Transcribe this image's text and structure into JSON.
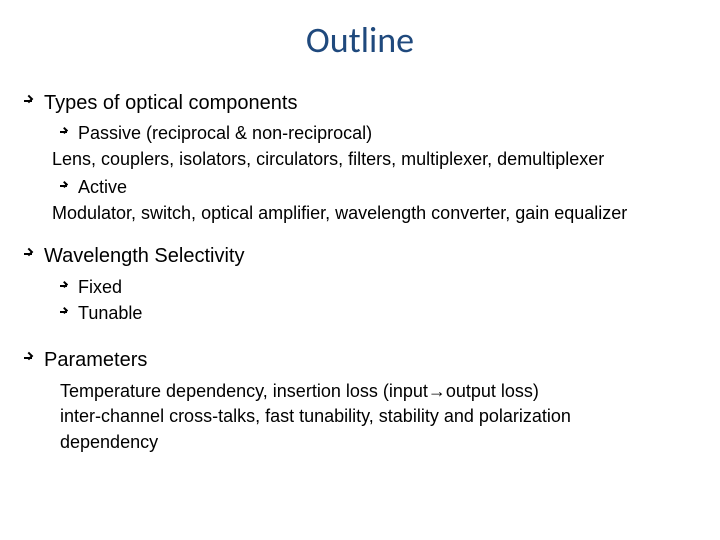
{
  "title": "Outline",
  "sections": [
    {
      "heading": "Types of optical components",
      "items": [
        {
          "label": "Passive (reciprocal & non-reciprocal)"
        }
      ],
      "desc1": "Lens, couplers, isolators, circulators, filters, multiplexer, demultiplexer",
      "items2": [
        {
          "label": "Active"
        }
      ],
      "desc2": "Modulator, switch, optical amplifier, wavelength converter, gain equalizer"
    },
    {
      "heading": "Wavelength Selectivity",
      "items": [
        {
          "label": "Fixed"
        },
        {
          "label": "Tunable"
        }
      ]
    },
    {
      "heading": "Parameters",
      "desc_lines": [
        "Temperature dependency, insertion loss (input→output loss)",
        "inter-channel cross-talks, fast tunability, stability and polarization",
        "dependency"
      ]
    }
  ],
  "colors": {
    "title": "#1f497d",
    "text": "#000000",
    "background": "#ffffff"
  },
  "fonts": {
    "title_family": "Calibri",
    "body_family": "Arial",
    "title_size": 36,
    "lvl1_size": 20,
    "lvl2_size": 18
  }
}
